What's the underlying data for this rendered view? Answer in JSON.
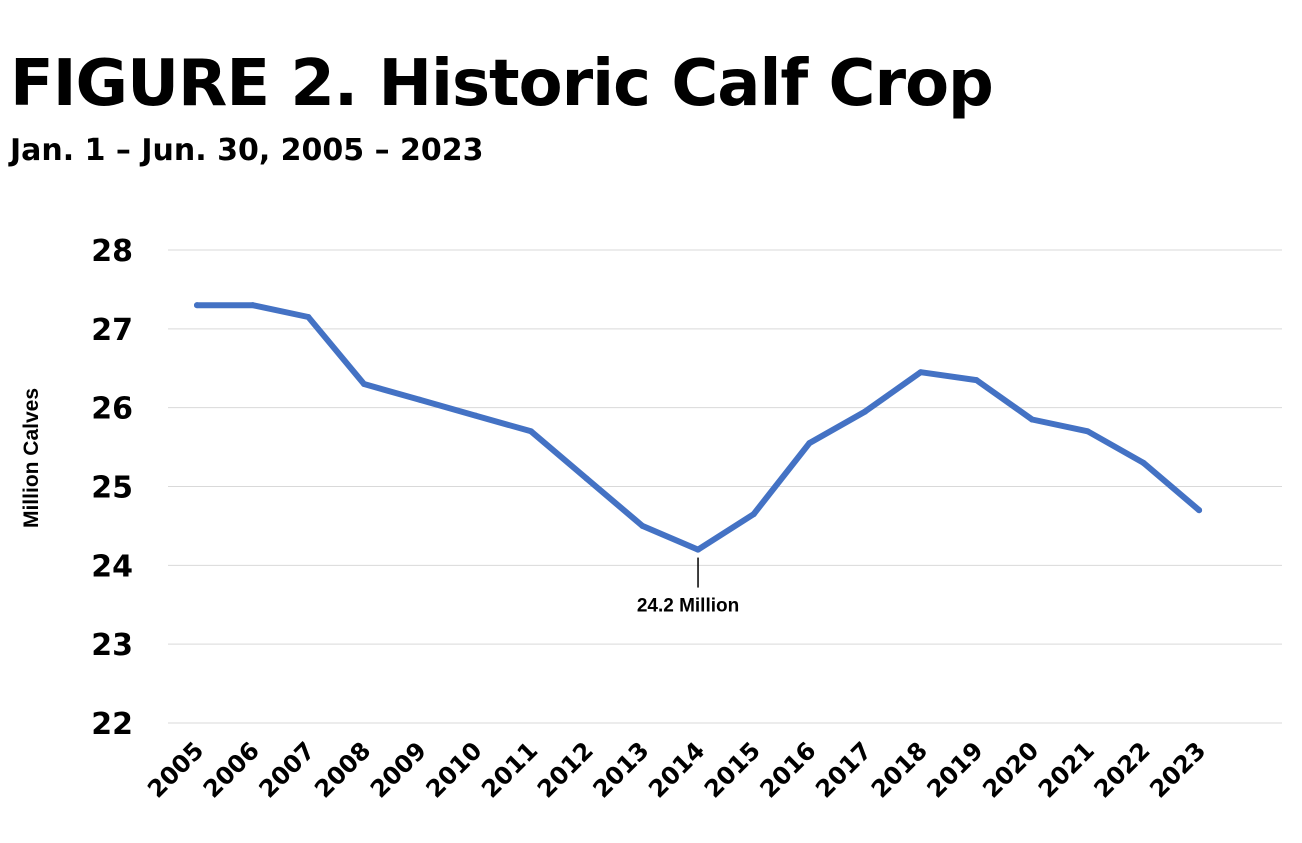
{
  "chart_data": {
    "type": "line",
    "title": "FIGURE 2. Historic Calf Crop",
    "subtitle": "Jan. 1 – Jun. 30, 2005 – 2023",
    "xlabel": "",
    "ylabel": "Million Calves",
    "ylim": [
      22,
      28
    ],
    "yticks": [
      "22",
      "23",
      "24",
      "25",
      "26",
      "27",
      "28"
    ],
    "grid": true,
    "categories": [
      "2005",
      "2006",
      "2007",
      "2008",
      "2009",
      "2010",
      "2011",
      "2012",
      "2013",
      "2014",
      "2015",
      "2016",
      "2017",
      "2018",
      "2019",
      "2020",
      "2021",
      "2022",
      "2023"
    ],
    "series": [
      {
        "values": [
          27.3,
          27.3,
          27.15,
          26.3,
          26.1,
          25.9,
          25.7,
          25.1,
          24.5,
          24.2,
          24.65,
          25.55,
          25.95,
          26.45,
          26.35,
          25.85,
          25.7,
          25.3,
          24.7
        ],
        "color": "#4472C4"
      }
    ],
    "annotations": [
      {
        "x": "2014",
        "y": 24.2,
        "text": "24.2 Million"
      }
    ]
  }
}
